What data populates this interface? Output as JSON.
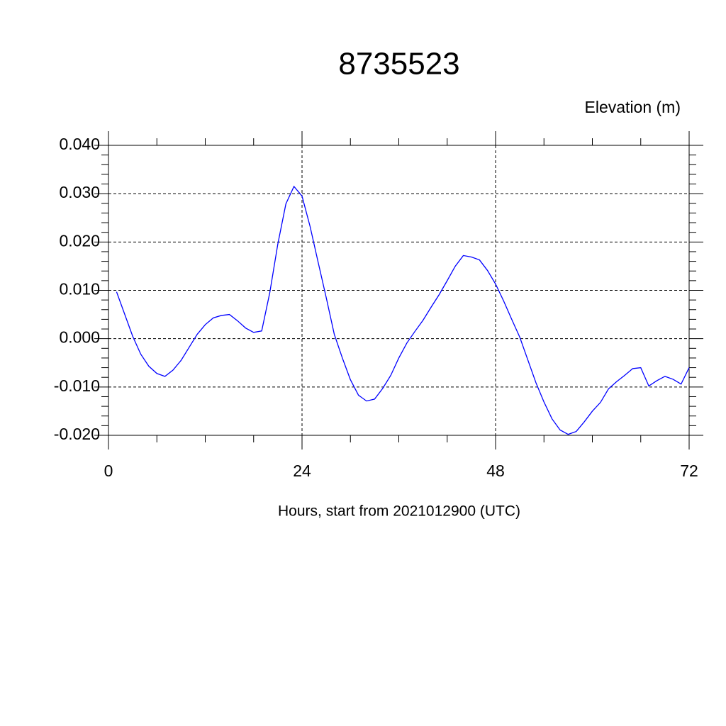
{
  "chart_data": {
    "type": "line",
    "title": "8735523",
    "y_label": "Elevation (m)",
    "x_label": "Hours, start from 2021012900 (UTC)",
    "color": "#0000ff",
    "grid": true,
    "x": [
      1,
      2,
      3,
      4,
      5,
      6,
      7,
      8,
      9,
      10,
      11,
      12,
      13,
      14,
      15,
      16,
      17,
      18,
      19,
      20,
      21,
      22,
      23,
      24,
      25,
      26,
      27,
      28,
      29,
      30,
      31,
      32,
      33,
      34,
      35,
      36,
      37,
      38,
      39,
      40,
      41,
      42,
      43,
      44,
      45,
      46,
      47,
      48,
      49,
      50,
      51,
      52,
      53,
      54,
      55,
      56,
      57,
      58,
      59,
      60,
      61,
      62,
      63,
      64,
      65,
      66,
      67,
      68,
      69,
      70,
      71,
      72
    ],
    "values": [
      0.0097,
      0.0051,
      0.0005,
      -0.0032,
      -0.0057,
      -0.0072,
      -0.0078,
      -0.0065,
      -0.0045,
      -0.0018,
      0.0009,
      0.0029,
      0.0043,
      0.0048,
      0.005,
      0.0037,
      0.0022,
      0.0013,
      0.0016,
      0.0095,
      0.0196,
      0.0279,
      0.0315,
      0.0295,
      0.0232,
      0.0158,
      0.0085,
      0.0009,
      -0.004,
      -0.0085,
      -0.0117,
      -0.0129,
      -0.0125,
      -0.0103,
      -0.0076,
      -0.004,
      -0.0009,
      0.0015,
      0.0038,
      0.0065,
      0.0091,
      0.012,
      0.015,
      0.0172,
      0.0169,
      0.0163,
      0.0141,
      0.0113,
      0.0078,
      0.004,
      0.0003,
      -0.0044,
      -0.0091,
      -0.0131,
      -0.0166,
      -0.0189,
      -0.0198,
      -0.0192,
      -0.0172,
      -0.015,
      -0.0132,
      -0.0104,
      -0.0089,
      -0.0076,
      -0.0062,
      -0.006,
      -0.0098,
      -0.0087,
      -0.0078,
      -0.0084,
      -0.0094,
      -0.006
    ],
    "xlim": [
      0,
      72
    ],
    "xticks": [
      0,
      24,
      48,
      72
    ],
    "xminorticks": [
      6,
      12,
      18,
      30,
      36,
      42,
      54,
      60,
      66
    ],
    "ylim": [
      -0.02,
      0.04
    ],
    "yticks": [
      {
        "value": -0.02,
        "label": "-0.020"
      },
      {
        "value": -0.01,
        "label": "-0.010"
      },
      {
        "value": 0,
        "label": "0.000"
      },
      {
        "value": 0.01,
        "label": "0.010"
      },
      {
        "value": 0.02,
        "label": "0.020"
      },
      {
        "value": 0.03,
        "label": "0.030"
      },
      {
        "value": 0.04,
        "label": "0.040"
      }
    ],
    "yminorticks": [
      -0.018,
      -0.016,
      -0.014,
      -0.012,
      -0.008,
      -0.006,
      -0.004,
      -0.002,
      0.002,
      0.004,
      0.006,
      0.008,
      0.012,
      0.014,
      0.016,
      0.018,
      0.022,
      0.024,
      0.026,
      0.028,
      0.032,
      0.034,
      0.036,
      0.038
    ]
  }
}
